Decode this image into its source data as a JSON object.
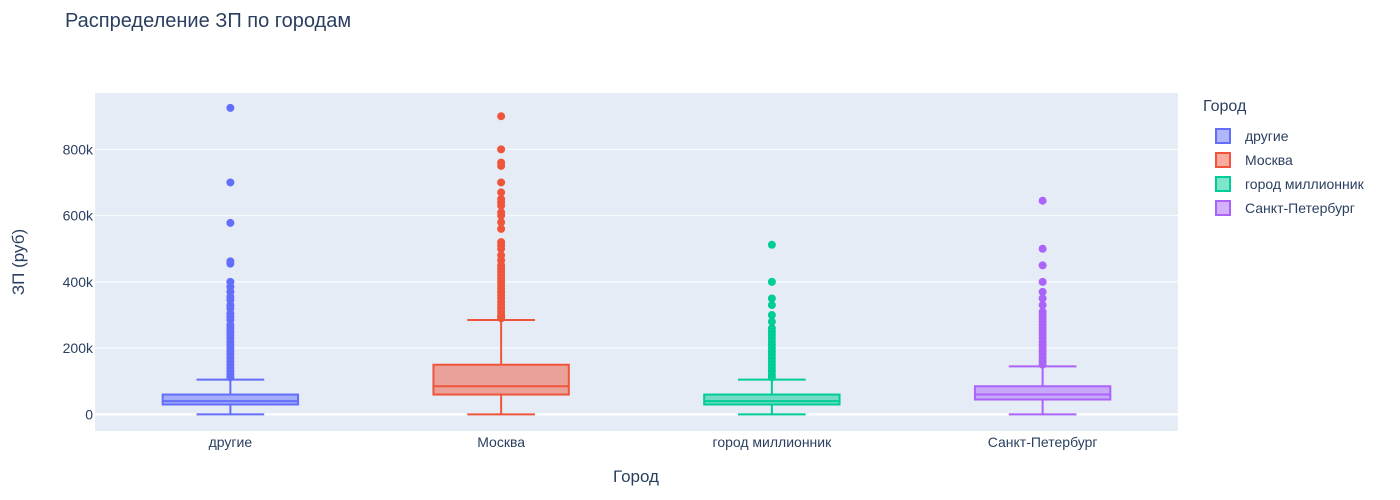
{
  "title": "Распределение ЗП по городам",
  "legend": {
    "title": "Город",
    "items": [
      {
        "label": "другие",
        "color": "#636efa"
      },
      {
        "label": "Москва",
        "color": "#ef553b"
      },
      {
        "label": "город миллионник",
        "color": "#00cc96"
      },
      {
        "label": "Санкт-Петербург",
        "color": "#ab63fa"
      }
    ]
  },
  "chart_data": {
    "type": "box",
    "title": "Распределение ЗП по городам",
    "xlabel": "Город",
    "ylabel": "ЗП (руб)",
    "categories": [
      "другие",
      "Москва",
      "город миллионник",
      "Санкт-Петербург"
    ],
    "ylim": [
      -50000,
      970000
    ],
    "yticks": [
      0,
      200000,
      400000,
      600000,
      800000
    ],
    "ytick_labels": [
      "0",
      "200k",
      "400k",
      "600k",
      "800k"
    ],
    "grid": true,
    "legend_position": "right",
    "series": [
      {
        "name": "другие",
        "color": "#636efa",
        "min": 0,
        "q1": 30000,
        "median": 40000,
        "q3": 60000,
        "whisker_high": 105000,
        "outliers": [
          925000,
          700000,
          578000,
          462000,
          455000,
          400000,
          385000,
          370000,
          355000,
          345000,
          330000,
          320000,
          305000,
          295000,
          285000,
          270000,
          260000,
          250000,
          240000,
          230000,
          220000,
          210000,
          200000,
          190000,
          180000,
          170000,
          160000,
          150000,
          140000,
          130000,
          120000,
          112000
        ]
      },
      {
        "name": "Москва",
        "color": "#ef553b",
        "min": 0,
        "q1": 60000,
        "median": 85000,
        "q3": 150000,
        "whisker_high": 285000,
        "outliers": [
          900000,
          800000,
          760000,
          750000,
          700000,
          670000,
          650000,
          640000,
          630000,
          610000,
          600000,
          580000,
          560000,
          520000,
          510000,
          500000,
          480000,
          465000,
          450000,
          440000,
          430000,
          420000,
          410000,
          400000,
          390000,
          380000,
          370000,
          360000,
          350000,
          340000,
          330000,
          320000,
          310000,
          300000,
          295000,
          290000
        ]
      },
      {
        "name": "город миллионник",
        "color": "#00cc96",
        "min": 0,
        "q1": 30000,
        "median": 40000,
        "q3": 60000,
        "whisker_high": 105000,
        "outliers": [
          512000,
          400000,
          350000,
          330000,
          300000,
          280000,
          260000,
          250000,
          240000,
          230000,
          220000,
          210000,
          200000,
          190000,
          180000,
          170000,
          160000,
          150000,
          140000,
          130000,
          120000,
          112000
        ]
      },
      {
        "name": "Санкт-Петербург",
        "color": "#ab63fa",
        "min": 0,
        "q1": 45000,
        "median": 60000,
        "q3": 85000,
        "whisker_high": 145000,
        "outliers": [
          645000,
          500000,
          450000,
          400000,
          370000,
          350000,
          330000,
          310000,
          300000,
          290000,
          280000,
          270000,
          260000,
          250000,
          240000,
          230000,
          220000,
          210000,
          200000,
          190000,
          180000,
          170000,
          160000,
          150000
        ]
      }
    ]
  }
}
